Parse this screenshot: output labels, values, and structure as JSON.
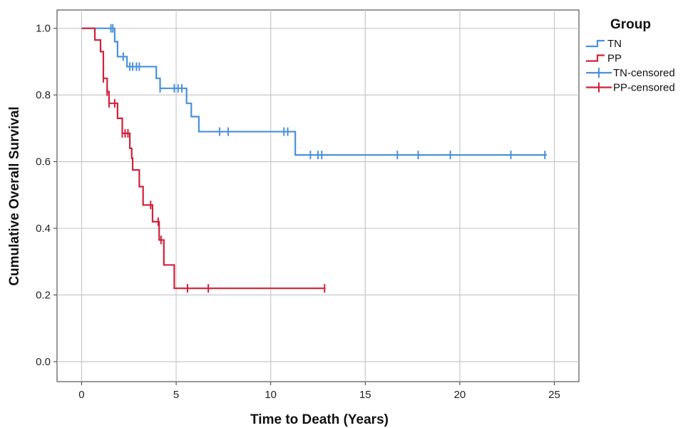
{
  "chart_data": {
    "type": "line",
    "step": true,
    "xlabel": "Time to Death (Years)",
    "ylabel": "Cumulative Overall Survival",
    "xlim": [
      -1.3,
      26.3
    ],
    "ylim": [
      -0.06,
      1.055
    ],
    "x_ticks": [
      0,
      5,
      10,
      15,
      20,
      25
    ],
    "y_ticks": [
      0.0,
      0.2,
      0.4,
      0.6,
      0.8,
      1.0
    ],
    "x_tick_labels": [
      "0",
      "5",
      "10",
      "15",
      "20",
      "25"
    ],
    "y_tick_labels": [
      "0.0",
      "0.2",
      "0.4",
      "0.6",
      "0.8",
      "1.0"
    ],
    "grid": true,
    "legend": {
      "title": "Group",
      "position": "top-right",
      "entries": [
        "TN",
        "PP",
        "TN-censored",
        "PP-censored"
      ]
    },
    "series": [
      {
        "name": "TN",
        "color": "#4a90d9",
        "steps": [
          [
            0,
            1.0
          ],
          [
            1.75,
            0.96
          ],
          [
            1.9,
            0.915
          ],
          [
            2.4,
            0.885
          ],
          [
            3.95,
            0.85
          ],
          [
            4.15,
            0.82
          ],
          [
            5.55,
            0.775
          ],
          [
            5.8,
            0.735
          ],
          [
            6.2,
            0.69
          ],
          [
            11.3,
            0.62
          ],
          [
            24.6,
            0.62
          ]
        ],
        "censored": [
          1.55,
          1.65,
          2.2,
          2.55,
          2.7,
          2.9,
          3.05,
          4.15,
          4.9,
          5.1,
          5.3,
          7.3,
          7.75,
          10.7,
          10.9,
          12.1,
          12.5,
          12.7,
          16.7,
          17.8,
          19.5,
          22.7,
          24.5
        ]
      },
      {
        "name": "PP",
        "color": "#d0213a",
        "steps": [
          [
            0,
            1.0
          ],
          [
            0.7,
            0.965
          ],
          [
            1.0,
            0.93
          ],
          [
            1.15,
            0.85
          ],
          [
            1.35,
            0.81
          ],
          [
            1.45,
            0.775
          ],
          [
            1.9,
            0.73
          ],
          [
            2.15,
            0.685
          ],
          [
            2.55,
            0.64
          ],
          [
            2.65,
            0.61
          ],
          [
            2.7,
            0.575
          ],
          [
            3.05,
            0.525
          ],
          [
            3.25,
            0.47
          ],
          [
            3.75,
            0.42
          ],
          [
            4.1,
            0.365
          ],
          [
            4.35,
            0.29
          ],
          [
            4.9,
            0.22
          ],
          [
            12.9,
            0.22
          ]
        ],
        "censored": [
          1.15,
          1.35,
          1.45,
          1.75,
          2.15,
          2.3,
          2.45,
          3.65,
          4.05,
          4.2,
          5.6,
          6.7,
          12.85
        ]
      }
    ]
  }
}
